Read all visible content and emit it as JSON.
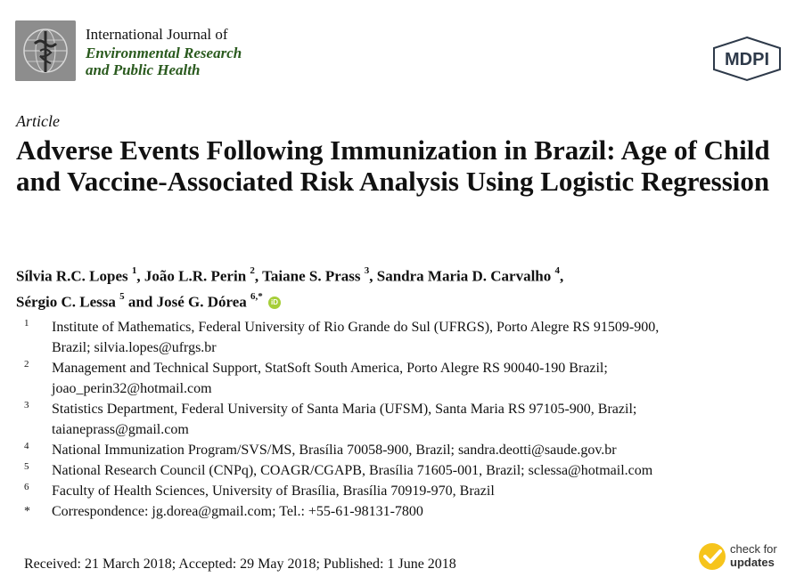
{
  "journal": {
    "prefix": "International Journal of",
    "name_line1": "Environmental Research",
    "name_line2": "and Public Health"
  },
  "publisher": "MDPI",
  "article_type": "Article",
  "title": "Adverse Events Following Immunization in Brazil: Age of Child and Vaccine-Associated Risk Analysis Using Logistic Regression",
  "authors": [
    {
      "name": "Sílvia R.C. Lopes",
      "aff": "1"
    },
    {
      "name": "João L.R. Perin",
      "aff": "2"
    },
    {
      "name": "Taiane S. Prass",
      "aff": "3"
    },
    {
      "name": "Sandra Maria D. Carvalho",
      "aff": "4"
    },
    {
      "name": "Sérgio C. Lessa",
      "aff": "5"
    },
    {
      "name": "José G. Dórea",
      "aff": "6,*"
    }
  ],
  "author_connector": "and",
  "affiliations": [
    {
      "num": "1",
      "text": "Institute of Mathematics, Federal University of Rio Grande do Sul (UFRGS), Porto Alegre RS 91509-900,",
      "text2": "Brazil; silvia.lopes@ufrgs.br"
    },
    {
      "num": "2",
      "text": "Management and Technical Support, StatSoft South America, Porto Alegre RS 90040-190 Brazil;",
      "text2": "joao_perin32@hotmail.com"
    },
    {
      "num": "3",
      "text": "Statistics Department, Federal University of Santa Maria (UFSM), Santa Maria RS 97105-900, Brazil;",
      "text2": "taianeprass@gmail.com"
    },
    {
      "num": "4",
      "text": "National Immunization Program/SVS/MS, Brasília 70058-900, Brazil; sandra.deotti@saude.gov.br"
    },
    {
      "num": "5",
      "text": "National Research Council (CNPq), COAGR/CGAPB, Brasília 71605-001, Brazil; sclessa@hotmail.com"
    },
    {
      "num": "6",
      "text": "Faculty of Health Sciences, University of Brasília, Brasília 70919-970, Brazil"
    },
    {
      "num": "*",
      "text": "Correspondence: jg.dorea@gmail.com; Tel.: +55-61-98131-7800"
    }
  ],
  "dates": "Received: 21 March 2018; Accepted: 29 May 2018; Published: 1 June 2018",
  "check_for_updates": {
    "line1": "check for",
    "line2": "updates"
  },
  "orcid_label": "iD",
  "colors": {
    "journal_green": "#2a5a1e",
    "orcid_green": "#a6ce39",
    "cfu_yellow": "#f6c41c"
  }
}
